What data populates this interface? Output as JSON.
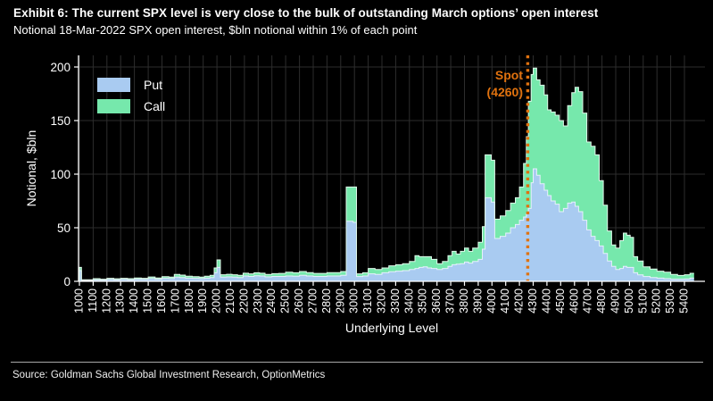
{
  "header": {
    "title": "Exhibit 6: The current SPX level is very close to the bulk of outstanding March options’ open interest",
    "subtitle": "Notional 18-Mar-2022 SPX open interest, $bln notional within 1% of each point"
  },
  "legend": {
    "put_label": "Put",
    "call_label": "Call"
  },
  "spot": {
    "line1": "Spot",
    "line2": "(4260)",
    "level": 4260
  },
  "source": {
    "text": "Source: Goldman Sachs Global Investment Research, OptionMetrics"
  },
  "colors": {
    "background": "#000000",
    "grid": "#2d2d2d",
    "axis": "#ffffff",
    "put": "#a9cbf1",
    "put_edge": "#e6f0fc",
    "call": "#76e8ac",
    "call_edge": "#dff7e9",
    "spot": "#e0720f"
  },
  "chart_data": {
    "type": "area",
    "subtype": "stacked-bar-silhouette",
    "title": "Notional 18-Mar-2022 SPX open interest, $bln notional within 1% of each point",
    "xlabel": "Underlying Level",
    "ylabel": "Notional, $bln",
    "ylim": [
      0,
      200
    ],
    "xlim": [
      985,
      5475
    ],
    "grid": true,
    "legend_position": "upper-left",
    "y_ticks": [
      0,
      50,
      100,
      150,
      200
    ],
    "x_ticks": [
      1000,
      1100,
      1200,
      1300,
      1400,
      1500,
      1600,
      1700,
      1800,
      1900,
      2000,
      2100,
      2200,
      2300,
      2400,
      2500,
      2600,
      2700,
      2800,
      2900,
      3000,
      3100,
      3200,
      3300,
      3400,
      3500,
      3600,
      3700,
      3800,
      3900,
      4000,
      4100,
      4200,
      4300,
      4400,
      4500,
      4600,
      4700,
      4800,
      4900,
      5000,
      5100,
      5200,
      5300,
      5400
    ],
    "spot_line": {
      "label": "Spot (4260)",
      "x": 4260
    },
    "series_names": [
      "Put",
      "Call"
    ],
    "points_format": [
      "underlying_level",
      "put_notional_bln",
      "call_notional_bln"
    ],
    "points": [
      [
        995,
        0.6,
        0.5
      ],
      [
        1000,
        10,
        3
      ],
      [
        1015,
        0.8,
        0.7
      ],
      [
        1060,
        0.8,
        0.7
      ],
      [
        1100,
        1.5,
        1
      ],
      [
        1150,
        1.2,
        0.8
      ],
      [
        1200,
        1.8,
        1
      ],
      [
        1250,
        1.5,
        0.9
      ],
      [
        1300,
        1.8,
        1
      ],
      [
        1350,
        1.5,
        1
      ],
      [
        1400,
        2,
        1.2
      ],
      [
        1450,
        1.8,
        1
      ],
      [
        1500,
        2.6,
        1.5
      ],
      [
        1550,
        2,
        1.2
      ],
      [
        1600,
        2.8,
        1.6
      ],
      [
        1650,
        2.6,
        1.4
      ],
      [
        1690,
        4,
        2.5
      ],
      [
        1730,
        3.6,
        2.2
      ],
      [
        1770,
        3,
        1.8
      ],
      [
        1820,
        2.8,
        1.5
      ],
      [
        1870,
        2.6,
        1.4
      ],
      [
        1910,
        3,
        1.8
      ],
      [
        1950,
        3.6,
        2
      ],
      [
        1980,
        8,
        4.5
      ],
      [
        2000,
        13,
        7
      ],
      [
        2025,
        4,
        2.2
      ],
      [
        2070,
        4.2,
        2.4
      ],
      [
        2110,
        4,
        2.2
      ],
      [
        2150,
        3.6,
        2
      ],
      [
        2190,
        5,
        2.6
      ],
      [
        2230,
        4.6,
        2.4
      ],
      [
        2270,
        5.2,
        2.8
      ],
      [
        2310,
        5,
        2.6
      ],
      [
        2350,
        4.2,
        2.2
      ],
      [
        2400,
        4.6,
        2.6
      ],
      [
        2450,
        4.6,
        2.8
      ],
      [
        2500,
        5,
        3.6
      ],
      [
        2550,
        4.8,
        3.2
      ],
      [
        2600,
        5.6,
        3.6
      ],
      [
        2650,
        5,
        3.2
      ],
      [
        2700,
        4.6,
        2.8
      ],
      [
        2750,
        4.6,
        2.8
      ],
      [
        2800,
        5,
        3.2
      ],
      [
        2850,
        5,
        3.2
      ],
      [
        2900,
        5.6,
        3.6
      ],
      [
        2940,
        56,
        32
      ],
      [
        2990,
        55,
        33
      ],
      [
        3015,
        4.5,
        2.5
      ],
      [
        3060,
        5,
        3
      ],
      [
        3100,
        7,
        5
      ],
      [
        3150,
        6.5,
        4.5
      ],
      [
        3200,
        8,
        4.5
      ],
      [
        3250,
        9,
        5.5
      ],
      [
        3300,
        9.5,
        6
      ],
      [
        3350,
        10,
        6.5
      ],
      [
        3400,
        11,
        7.5
      ],
      [
        3440,
        12,
        12
      ],
      [
        3470,
        13,
        10
      ],
      [
        3500,
        13.5,
        9.5
      ],
      [
        3530,
        12.5,
        10.5
      ],
      [
        3560,
        12,
        8.5
      ],
      [
        3600,
        11,
        5.5
      ],
      [
        3640,
        12,
        6.5
      ],
      [
        3680,
        14,
        10
      ],
      [
        3710,
        15.5,
        12.5
      ],
      [
        3740,
        16,
        9.5
      ],
      [
        3770,
        16.5,
        11.5
      ],
      [
        3800,
        18,
        13
      ],
      [
        3830,
        17,
        11
      ],
      [
        3860,
        18.5,
        12.5
      ],
      [
        3900,
        20.5,
        16
      ],
      [
        3930,
        30,
        21
      ],
      [
        3950,
        78,
        40
      ],
      [
        3995,
        74,
        39
      ],
      [
        4020,
        40,
        18
      ],
      [
        4060,
        42,
        19
      ],
      [
        4100,
        45,
        21
      ],
      [
        4135,
        50,
        23
      ],
      [
        4170,
        53,
        25
      ],
      [
        4200,
        57,
        31
      ],
      [
        4230,
        60,
        50
      ],
      [
        4250,
        63,
        72
      ],
      [
        4265,
        68,
        100
      ],
      [
        4285,
        92,
        101
      ],
      [
        4300,
        105,
        94
      ],
      [
        4325,
        99,
        89
      ],
      [
        4350,
        91,
        92
      ],
      [
        4380,
        85,
        89
      ],
      [
        4405,
        80,
        80
      ],
      [
        4430,
        75,
        83
      ],
      [
        4460,
        72,
        83
      ],
      [
        4490,
        65,
        85
      ],
      [
        4520,
        68,
        77
      ],
      [
        4550,
        73,
        91
      ],
      [
        4580,
        74,
        102
      ],
      [
        4605,
        70,
        111
      ],
      [
        4630,
        65,
        112
      ],
      [
        4660,
        57,
        100
      ],
      [
        4690,
        48,
        82
      ],
      [
        4720,
        42,
        84
      ],
      [
        4750,
        38,
        80
      ],
      [
        4780,
        33,
        61
      ],
      [
        4810,
        26,
        45
      ],
      [
        4840,
        19,
        28
      ],
      [
        4870,
        14,
        20
      ],
      [
        4900,
        11,
        20
      ],
      [
        4930,
        12,
        26
      ],
      [
        4955,
        14,
        31
      ],
      [
        4980,
        13,
        30
      ],
      [
        5005,
        13,
        28
      ],
      [
        5030,
        8,
        15
      ],
      [
        5060,
        6,
        13
      ],
      [
        5100,
        4.5,
        9
      ],
      [
        5150,
        3.5,
        8
      ],
      [
        5200,
        3,
        6.5
      ],
      [
        5250,
        2.5,
        6
      ],
      [
        5300,
        2,
        4.5
      ],
      [
        5350,
        2,
        3.5
      ],
      [
        5400,
        2.2,
        4
      ],
      [
        5440,
        3,
        4.5
      ]
    ]
  }
}
